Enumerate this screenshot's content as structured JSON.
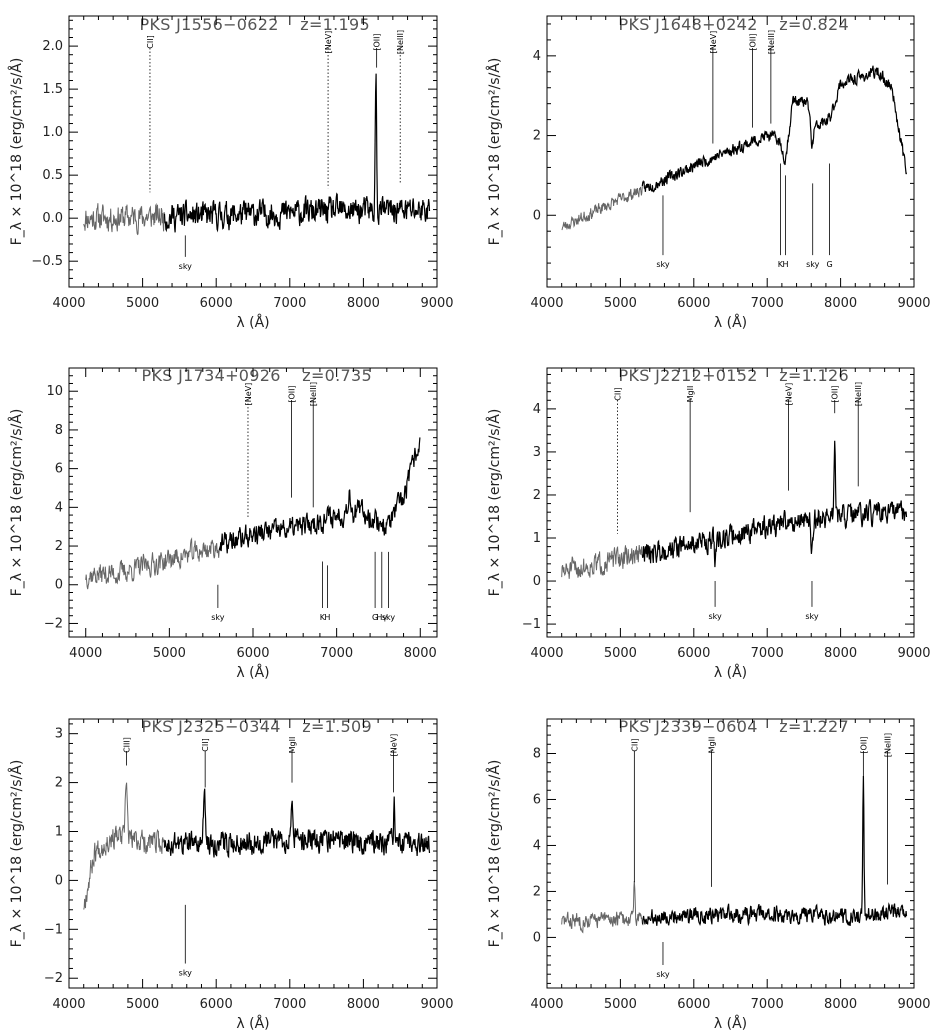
{
  "chart_data": [
    {
      "type": "line",
      "title_source": "PKS J1556−0622",
      "title_z": "z=1.195",
      "xlabel": "λ (Å)",
      "ylabel": "F_λ × 10^18 (erg/cm²/s/Å)",
      "xlim": [
        4000,
        9000
      ],
      "ylim": [
        -0.8,
        2.35
      ],
      "xticks": [
        4000,
        5000,
        6000,
        7000,
        8000,
        9000
      ],
      "yticks": [
        -0.5,
        0.0,
        0.5,
        1.0,
        1.5,
        2.0
      ],
      "ytick_labels": [
        "−0.5",
        "0.0",
        "0.5",
        "1.0",
        "1.5",
        "2.0"
      ],
      "spectrum": {
        "x_start": 4200,
        "x_end": 8900,
        "baseline": [
          [
            4200,
            0.0
          ],
          [
            6000,
            0.03
          ],
          [
            7500,
            0.08
          ],
          [
            8900,
            0.1
          ]
        ],
        "noise": 0.13,
        "lighten_below": 5300,
        "seed": 11,
        "peaks": [
          [
            8170,
            1.6,
            12
          ]
        ]
      },
      "lines_top": [
        {
          "label": "CII]",
          "x": 5100,
          "y_bottom": 0.3,
          "dotted": true
        },
        {
          "label": "[NeV]",
          "x": 7520,
          "y_bottom": 0.35,
          "dotted": true
        },
        {
          "label": "[OII]",
          "x": 8180,
          "y_bottom": 1.75,
          "dotted": false
        },
        {
          "label": "[NeIII]",
          "x": 8500,
          "y_bottom": 0.4,
          "dotted": true
        }
      ],
      "lines_bottom": [
        {
          "label": "sky",
          "x": 5580,
          "y_top": -0.2,
          "y_bottom": -0.45
        }
      ]
    },
    {
      "type": "line",
      "title_source": "PKS J1648+0242",
      "title_z": "z=0.824",
      "xlabel": "λ (Å)",
      "ylabel": "F_λ × 10^18 (erg/cm²/s/Å)",
      "xlim": [
        4000,
        9000
      ],
      "ylim": [
        -1.8,
        5.0
      ],
      "xticks": [
        4000,
        5000,
        6000,
        7000,
        8000,
        9000
      ],
      "yticks": [
        0,
        2,
        4
      ],
      "ytick_labels": [
        "0",
        "2",
        "4"
      ],
      "spectrum": {
        "x_start": 4200,
        "x_end": 8900,
        "baseline": [
          [
            4200,
            -0.3
          ],
          [
            5000,
            0.4
          ],
          [
            5600,
            0.9
          ],
          [
            6200,
            1.4
          ],
          [
            7000,
            2.0
          ],
          [
            7150,
            1.9
          ],
          [
            7250,
            1.4
          ],
          [
            7350,
            2.9
          ],
          [
            7550,
            2.8
          ],
          [
            7650,
            2.2
          ],
          [
            7850,
            2.4
          ],
          [
            8000,
            3.3
          ],
          [
            8500,
            3.6
          ],
          [
            8700,
            3.2
          ],
          [
            8900,
            1.0
          ]
        ],
        "noise": 0.13,
        "lighten_below": 5300,
        "seed": 23,
        "peaks": [
          [
            7610,
            -0.7,
            25
          ]
        ]
      },
      "lines_top": [
        {
          "label": "[NeV]",
          "x": 6260,
          "y_bottom": 1.8,
          "dotted": false
        },
        {
          "label": "[OII]",
          "x": 6800,
          "y_bottom": 2.2,
          "dotted": false
        },
        {
          "label": "[NeIII]",
          "x": 7050,
          "y_bottom": 2.3,
          "dotted": false
        }
      ],
      "lines_bottom": [
        {
          "label": "sky",
          "x": 5580,
          "y_top": 0.5,
          "y_bottom": -1.0
        },
        {
          "label": "K",
          "x": 7180,
          "y_top": 1.3,
          "y_bottom": -1.0
        },
        {
          "label": "H",
          "x": 7250,
          "y_top": 1.0,
          "y_bottom": -1.0
        },
        {
          "label": "sky",
          "x": 7620,
          "y_top": 0.8,
          "y_bottom": -1.0
        },
        {
          "label": "G",
          "x": 7850,
          "y_top": 1.3,
          "y_bottom": -1.0
        }
      ]
    },
    {
      "type": "line",
      "title_source": "PKS J1734+0926",
      "title_z": "z=0.735",
      "xlabel": "λ (Å)",
      "ylabel": "F_λ × 10^18 (erg/cm²/s/Å)",
      "xlim": [
        3800,
        8200
      ],
      "ylim": [
        -2.7,
        11.2
      ],
      "xticks": [
        4000,
        5000,
        6000,
        7000,
        8000
      ],
      "yticks": [
        -2,
        0,
        2,
        4,
        6,
        8,
        10
      ],
      "ytick_labels": [
        "−2",
        "0",
        "2",
        "4",
        "6",
        "8",
        "10"
      ],
      "spectrum": {
        "x_start": 4000,
        "x_end": 8000,
        "baseline": [
          [
            4000,
            0.5
          ],
          [
            4400,
            0.6
          ],
          [
            5000,
            1.3
          ],
          [
            5600,
            2.0
          ],
          [
            6000,
            2.6
          ],
          [
            6600,
            3.0
          ],
          [
            7000,
            3.6
          ],
          [
            7300,
            3.8
          ],
          [
            7600,
            3.0
          ],
          [
            7800,
            4.5
          ],
          [
            8000,
            7.5
          ]
        ],
        "noise": 0.5,
        "lighten_below": 5600,
        "seed": 37,
        "peaks": [
          [
            7150,
            1.0,
            30
          ]
        ]
      },
      "lines_top": [
        {
          "label": "[NeV]",
          "x": 5940,
          "y_bottom": 3.5,
          "dotted": true
        },
        {
          "label": "[OII]",
          "x": 6460,
          "y_bottom": 4.5,
          "dotted": false
        },
        {
          "label": "[NeIII]",
          "x": 6720,
          "y_bottom": 4.0,
          "dotted": false
        }
      ],
      "lines_bottom": [
        {
          "label": "sky",
          "x": 5580,
          "y_top": 0.0,
          "y_bottom": -1.2
        },
        {
          "label": "K",
          "x": 6830,
          "y_top": 1.2,
          "y_bottom": -1.2
        },
        {
          "label": "H",
          "x": 6890,
          "y_top": 1.0,
          "y_bottom": -1.2
        },
        {
          "label": "G",
          "x": 7460,
          "y_top": 1.7,
          "y_bottom": -1.2
        },
        {
          "label": "Hγ",
          "x": 7540,
          "y_top": 1.7,
          "y_bottom": -1.2
        },
        {
          "label": "sky",
          "x": 7620,
          "y_top": 1.7,
          "y_bottom": -1.2
        }
      ]
    },
    {
      "type": "line",
      "title_source": "PKS J2212+0152",
      "title_z": "z=1.126",
      "xlabel": "λ (Å)",
      "ylabel": "F_λ × 10^18 (erg/cm²/s/Å)",
      "xlim": [
        4000,
        9000
      ],
      "ylim": [
        -1.3,
        4.95
      ],
      "xticks": [
        4000,
        5000,
        6000,
        7000,
        8000,
        9000
      ],
      "yticks": [
        -1,
        0,
        1,
        2,
        3,
        4
      ],
      "ytick_labels": [
        "−1",
        "0",
        "1",
        "2",
        "3",
        "4"
      ],
      "spectrum": {
        "x_start": 4200,
        "x_end": 8900,
        "baseline": [
          [
            4200,
            0.2
          ],
          [
            4800,
            0.45
          ],
          [
            5500,
            0.7
          ],
          [
            6500,
            1.05
          ],
          [
            7500,
            1.45
          ],
          [
            8900,
            1.6
          ]
        ],
        "noise": 0.22,
        "lighten_below": 5300,
        "seed": 51,
        "peaks": [
          [
            7920,
            1.9,
            12
          ],
          [
            7610,
            -0.8,
            20
          ],
          [
            6290,
            -0.5,
            15
          ]
        ]
      },
      "lines_top": [
        {
          "label": "CII]",
          "x": 4960,
          "y_bottom": 1.1,
          "dotted": true
        },
        {
          "label": "MgII",
          "x": 5950,
          "y_bottom": 1.6,
          "dotted": false
        },
        {
          "label": "[NeV]",
          "x": 7290,
          "y_bottom": 2.1,
          "dotted": false
        },
        {
          "label": "[OII]",
          "x": 7920,
          "y_bottom": 3.9,
          "dotted": false
        },
        {
          "label": "[NeIII]",
          "x": 8240,
          "y_bottom": 2.2,
          "dotted": false
        }
      ],
      "lines_bottom": [
        {
          "label": "sky",
          "x": 6290,
          "y_top": 0.0,
          "y_bottom": -0.6
        },
        {
          "label": "sky",
          "x": 7610,
          "y_top": 0.0,
          "y_bottom": -0.6
        }
      ]
    },
    {
      "type": "line",
      "title_source": "PKS J2325−0344",
      "title_z": "z=1.509",
      "xlabel": "λ (Å)",
      "ylabel": "F_λ × 10^18 (erg/cm²/s/Å)",
      "xlim": [
        4000,
        9000
      ],
      "ylim": [
        -2.2,
        3.3
      ],
      "xticks": [
        4000,
        5000,
        6000,
        7000,
        8000,
        9000
      ],
      "yticks": [
        -2,
        -1,
        0,
        1,
        2,
        3
      ],
      "ytick_labels": [
        "−2",
        "−1",
        "0",
        "1",
        "2",
        "3"
      ],
      "spectrum": {
        "x_start": 4200,
        "x_end": 8900,
        "baseline": [
          [
            4200,
            -0.5
          ],
          [
            4350,
            0.6
          ],
          [
            4600,
            0.9
          ],
          [
            5200,
            0.75
          ],
          [
            6000,
            0.75
          ],
          [
            7000,
            0.85
          ],
          [
            8000,
            0.8
          ],
          [
            8900,
            0.7
          ]
        ],
        "noise": 0.2,
        "lighten_below": 5300,
        "seed": 67,
        "peaks": [
          [
            4780,
            1.2,
            18
          ],
          [
            5840,
            0.9,
            20
          ],
          [
            7030,
            1.0,
            18
          ],
          [
            8420,
            0.8,
            10
          ]
        ]
      },
      "lines_top": [
        {
          "label": "CIII]",
          "x": 4780,
          "y_bottom": 2.35,
          "dotted": false
        },
        {
          "label": "CII]",
          "x": 5850,
          "y_bottom": 1.9,
          "dotted": false
        },
        {
          "label": "MgII",
          "x": 7030,
          "y_bottom": 2.0,
          "dotted": false
        },
        {
          "label": "[NeV]",
          "x": 8410,
          "y_bottom": 1.8,
          "dotted": false
        }
      ],
      "lines_bottom": [
        {
          "label": "sky",
          "x": 5580,
          "y_top": -0.5,
          "y_bottom": -1.7
        }
      ]
    },
    {
      "type": "line",
      "title_source": "PKS J2339−0604",
      "title_z": "z=1.227",
      "xlabel": "λ (Å)",
      "ylabel": "F_λ × 10^18 (erg/cm²/s/Å)",
      "xlim": [
        4000,
        9000
      ],
      "ylim": [
        -2.2,
        9.5
      ],
      "xticks": [
        4000,
        5000,
        6000,
        7000,
        8000,
        9000
      ],
      "yticks": [
        0,
        2,
        4,
        6,
        8
      ],
      "ytick_labels": [
        "0",
        "2",
        "4",
        "6",
        "8"
      ],
      "spectrum": {
        "x_start": 4200,
        "x_end": 8900,
        "baseline": [
          [
            4200,
            0.7
          ],
          [
            5000,
            0.8
          ],
          [
            6000,
            1.0
          ],
          [
            7000,
            1.0
          ],
          [
            8000,
            0.9
          ],
          [
            8900,
            1.1
          ]
        ],
        "noise": 0.3,
        "lighten_below": 5300,
        "seed": 83,
        "peaks": [
          [
            8310,
            5.8,
            12
          ],
          [
            5190,
            1.5,
            10
          ]
        ]
      },
      "lines_top": [
        {
          "label": "CII]",
          "x": 5190,
          "y_bottom": 2.4,
          "dotted": false
        },
        {
          "label": "MgII",
          "x": 6240,
          "y_bottom": 2.2,
          "dotted": false
        },
        {
          "label": "[OII]",
          "x": 8310,
          "y_bottom": 7.0,
          "dotted": false
        },
        {
          "label": "[NeIII]",
          "x": 8640,
          "y_bottom": 2.3,
          "dotted": false
        }
      ],
      "lines_bottom": [
        {
          "label": "sky",
          "x": 5580,
          "y_top": -0.2,
          "y_bottom": -1.2
        }
      ]
    }
  ]
}
